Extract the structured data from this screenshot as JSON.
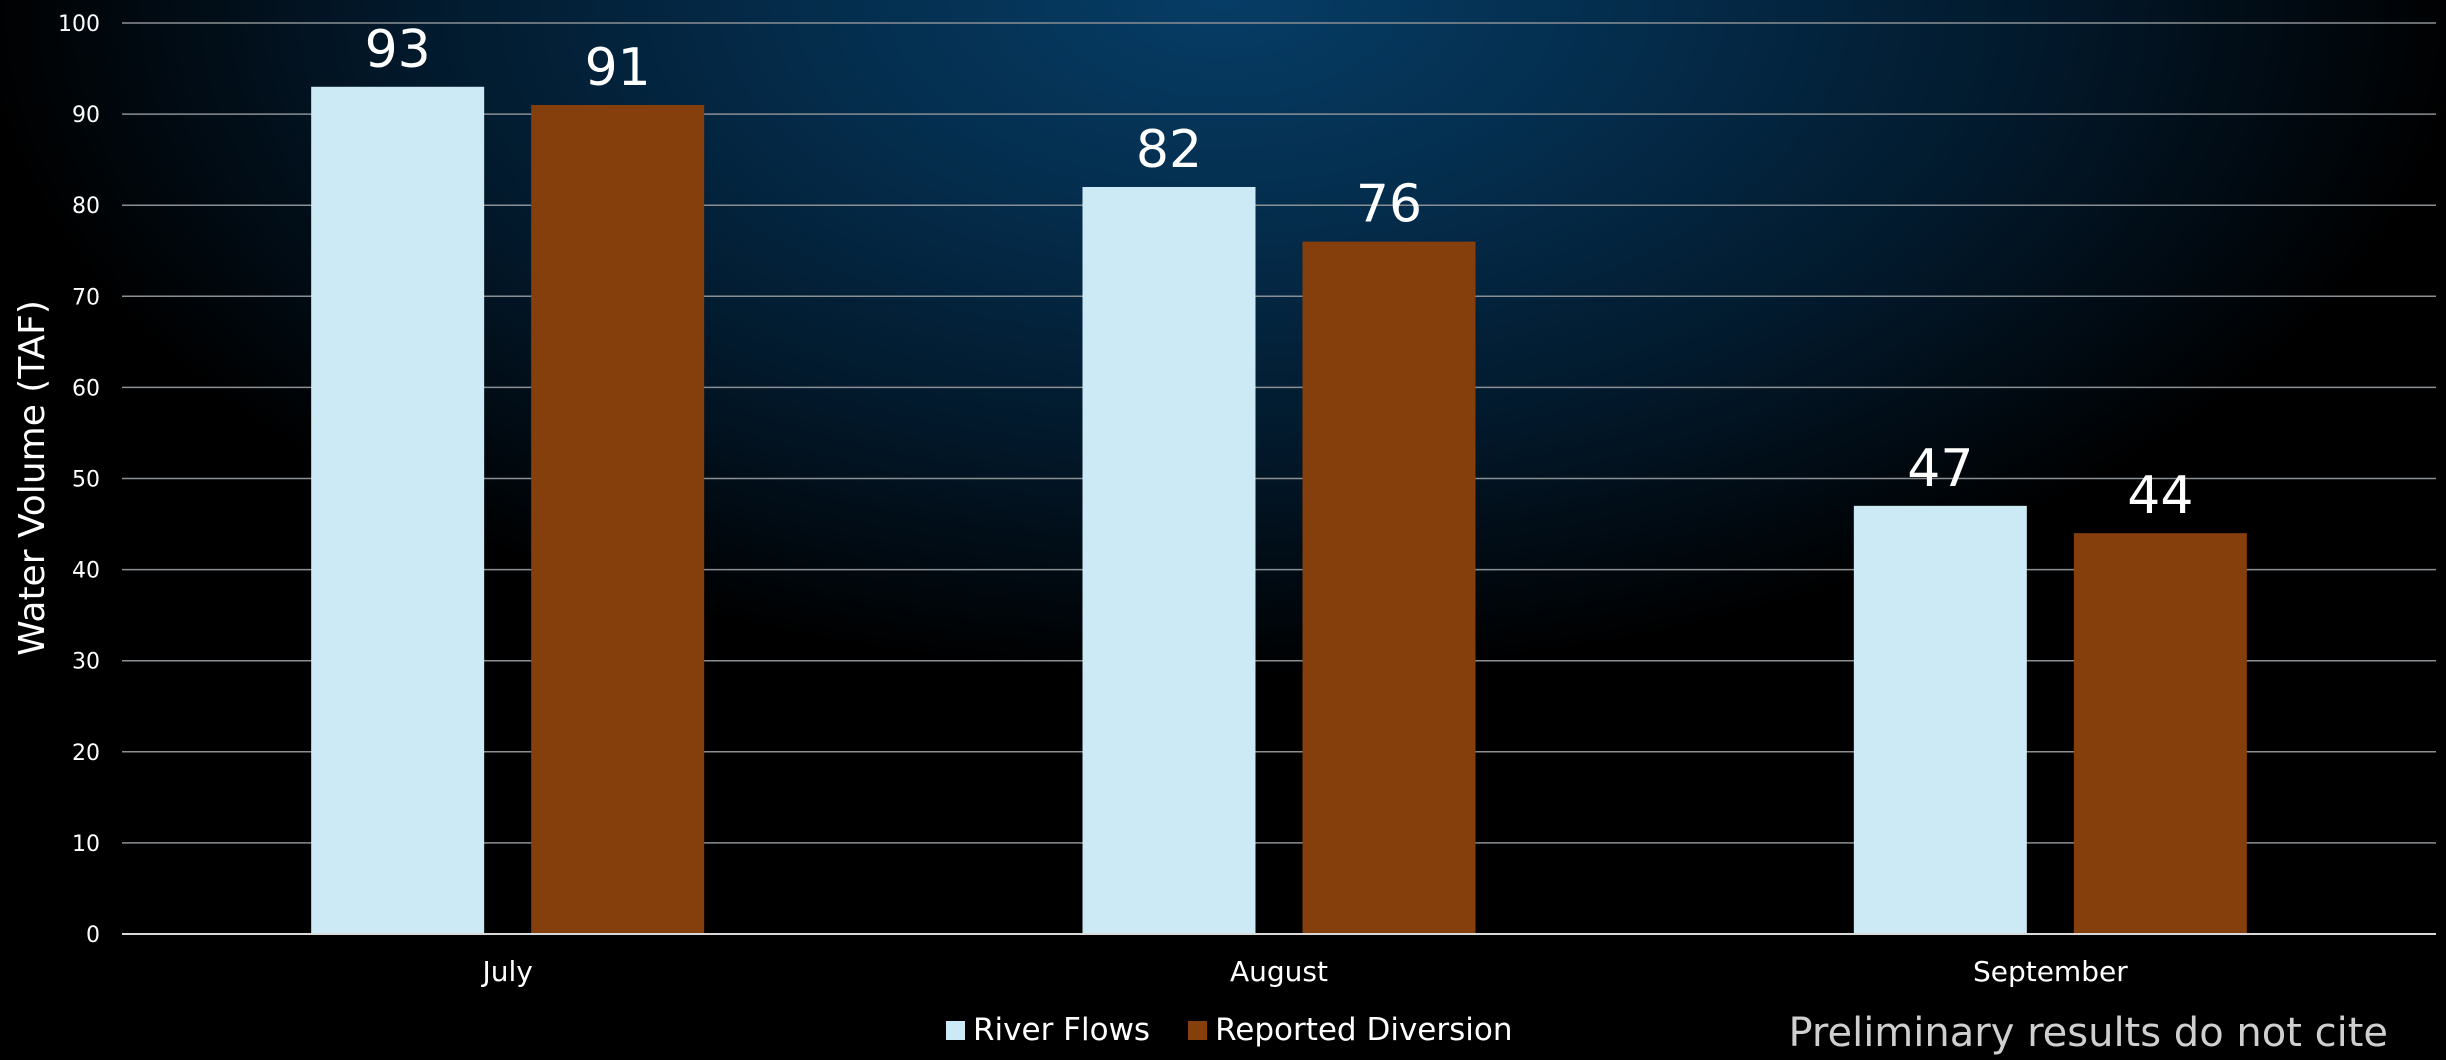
{
  "chart_data": {
    "type": "bar",
    "categories": [
      "July",
      "August",
      "September"
    ],
    "series": [
      {
        "name": "River Flows",
        "values": [
          93,
          82,
          47
        ],
        "color": "#cbeaf6"
      },
      {
        "name": "Reported Diversion",
        "values": [
          91,
          76,
          44
        ],
        "color": "#843f0c"
      }
    ],
    "data_labels": [
      [
        "93",
        "82",
        "47"
      ],
      [
        "91",
        "76",
        "44"
      ]
    ],
    "ylabel": "Water Volume (TAF)",
    "xlabel": "",
    "ylim": [
      0,
      100
    ],
    "yticks": [
      0,
      10,
      20,
      30,
      40,
      50,
      60,
      70,
      80,
      90,
      100
    ],
    "grid": true,
    "legend_position": "bottom"
  },
  "footnote": "Preliminary results do not cite",
  "colors": {
    "gridline": "#8a8f94",
    "axis": "#d9d9d9"
  }
}
